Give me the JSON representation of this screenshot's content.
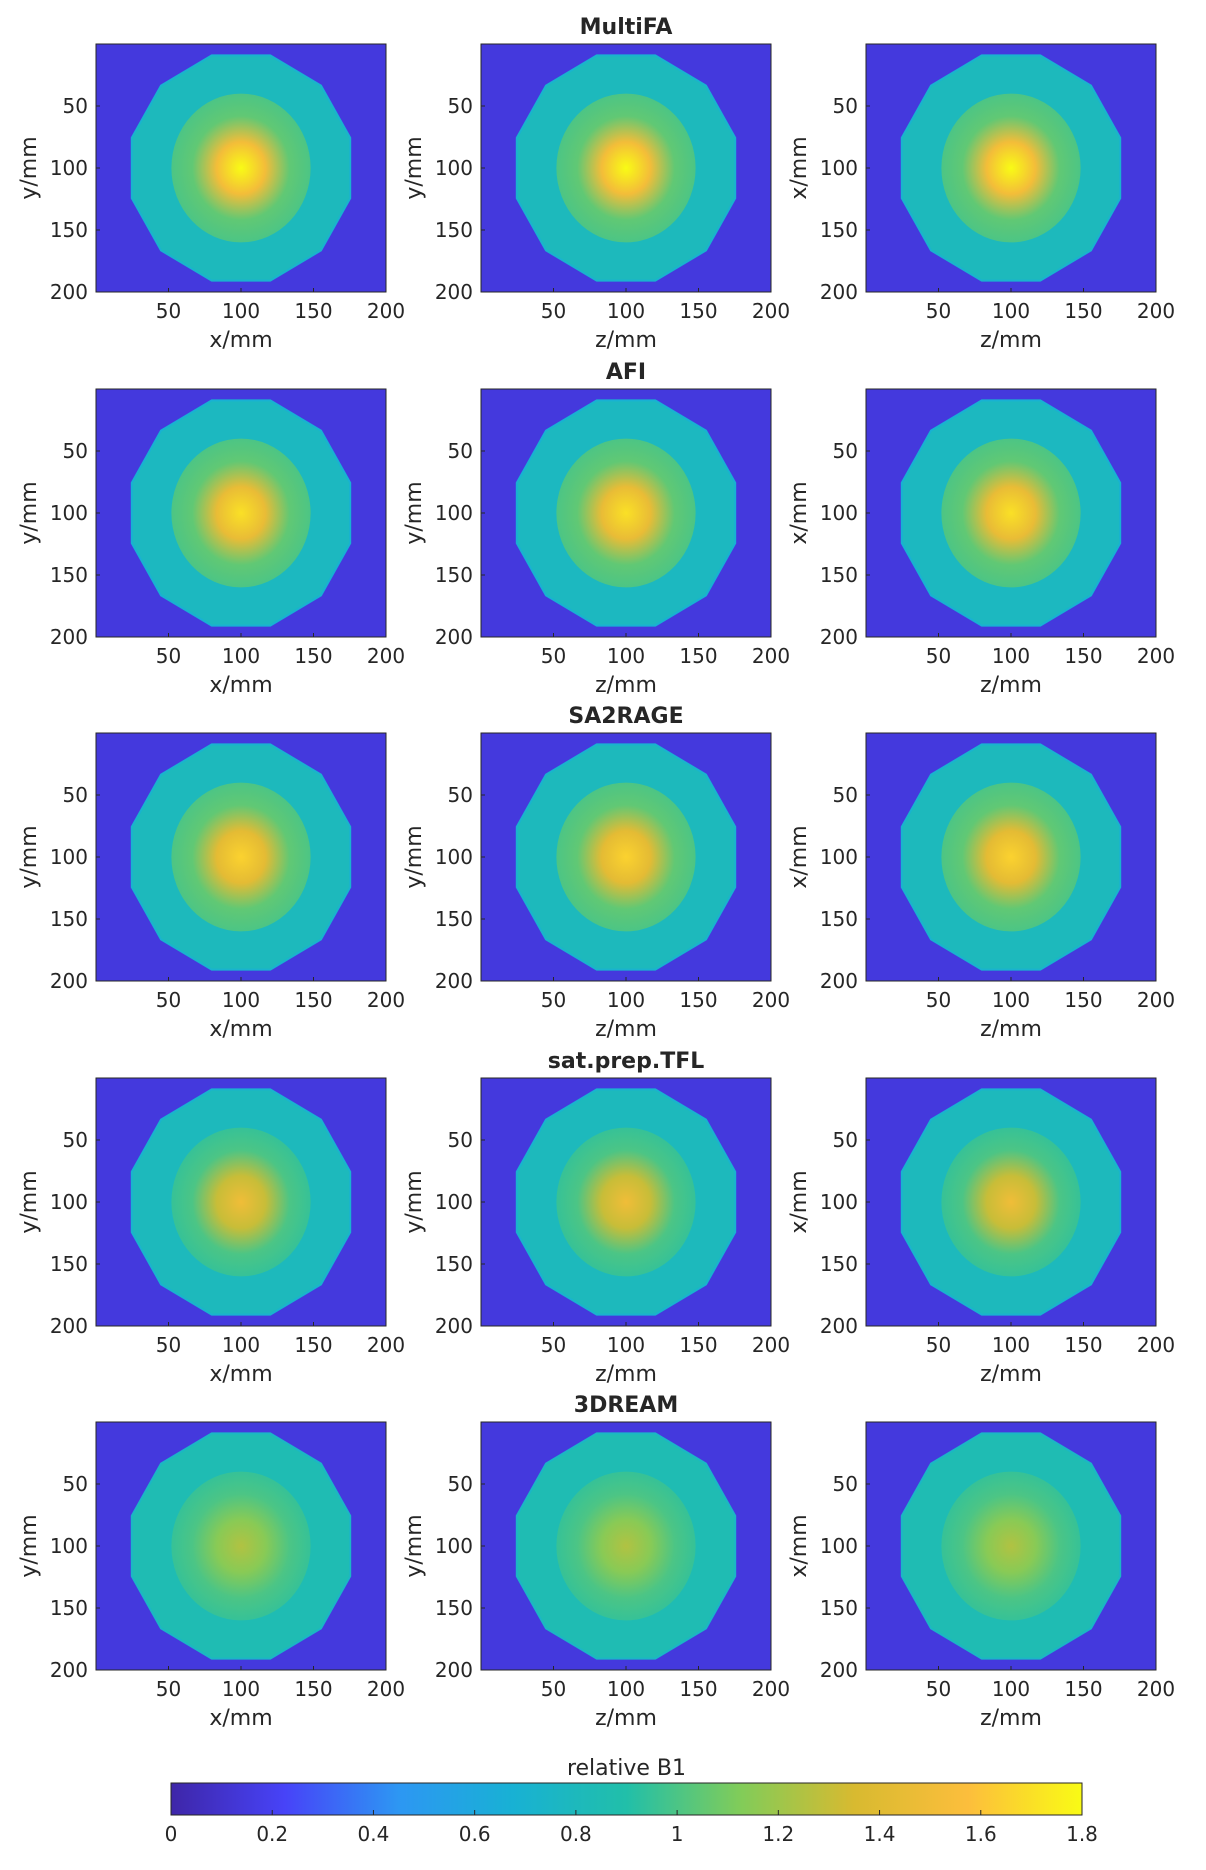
{
  "chart_data": {
    "type": "heatmap",
    "rows": [
      {
        "title": "MultiFA",
        "peak": 1.8,
        "background": 0.8,
        "rim": 1.0,
        "panels": [
          {
            "xlabel": "x/mm",
            "ylabel": "y/mm"
          },
          {
            "xlabel": "z/mm",
            "ylabel": "y/mm"
          },
          {
            "xlabel": "z/mm",
            "ylabel": "x/mm"
          }
        ]
      },
      {
        "title": "AFI",
        "peak": 1.7,
        "background": 0.78,
        "rim": 1.0,
        "panels": [
          {
            "xlabel": "x/mm",
            "ylabel": "y/mm"
          },
          {
            "xlabel": "z/mm",
            "ylabel": "y/mm"
          },
          {
            "xlabel": "z/mm",
            "ylabel": "x/mm"
          }
        ]
      },
      {
        "title": "SA2RAGE",
        "peak": 1.65,
        "background": 0.8,
        "rim": 1.0,
        "panels": [
          {
            "xlabel": "x/mm",
            "ylabel": "y/mm"
          },
          {
            "xlabel": "z/mm",
            "ylabel": "y/mm"
          },
          {
            "xlabel": "z/mm",
            "ylabel": "x/mm"
          }
        ]
      },
      {
        "title": "sat.prep.TFL",
        "peak": 1.5,
        "background": 0.8,
        "rim": 0.95,
        "panels": [
          {
            "xlabel": "x/mm",
            "ylabel": "y/mm"
          },
          {
            "xlabel": "z/mm",
            "ylabel": "y/mm"
          },
          {
            "xlabel": "z/mm",
            "ylabel": "x/mm"
          }
        ]
      },
      {
        "title": "3DREAM",
        "peak": 1.25,
        "background": 0.85,
        "rim": 0.95,
        "panels": [
          {
            "xlabel": "x/mm",
            "ylabel": "y/mm"
          },
          {
            "xlabel": "z/mm",
            "ylabel": "y/mm"
          },
          {
            "xlabel": "z/mm",
            "ylabel": "x/mm"
          }
        ]
      }
    ],
    "x_ticks": [
      50,
      100,
      150,
      200
    ],
    "y_ticks": [
      50,
      100,
      150,
      200
    ],
    "x_range": [
      0,
      200
    ],
    "y_range": [
      0,
      200
    ],
    "y_reversed": true,
    "colorbar": {
      "label": "relative B1",
      "ticks": [
        0,
        0.2,
        0.4,
        0.6,
        0.8,
        1,
        1.2,
        1.4,
        1.6,
        1.8
      ],
      "range": [
        0,
        1.8
      ],
      "colormap": "parula",
      "placement": "bottom"
    },
    "colors": {
      "stops": [
        "#3e26a8",
        "#4743f8",
        "#2d97f3",
        "#18b1d4",
        "#21bfa9",
        "#81cc59",
        "#d8ba30",
        "#fcbe3c",
        "#f9fb15"
      ]
    }
  }
}
